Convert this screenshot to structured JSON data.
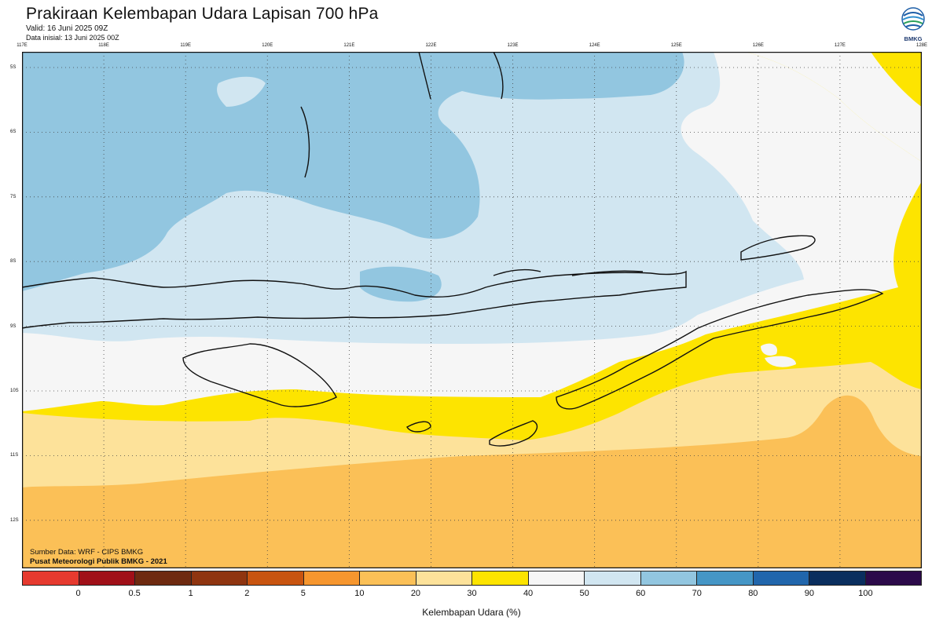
{
  "header": {
    "title": "Prakiraan Kelembapan Udara Lapisan 700 hPa",
    "valid": "Valid: 16 Juni 2025 09Z",
    "init": "Data inisial: 13 Juni 2025 00Z",
    "logo_text": "BMKG"
  },
  "map": {
    "lon_labels": [
      "117E",
      "118E",
      "119E",
      "120E",
      "121E",
      "122E",
      "123E",
      "124E",
      "125E",
      "126E",
      "127E",
      "128E"
    ],
    "lat_labels": [
      "5S",
      "6S",
      "7S",
      "8S",
      "9S",
      "10S",
      "11S",
      "12S"
    ],
    "extent": {
      "lon": [
        117,
        128
      ],
      "lat": [
        -5,
        -13
      ]
    },
    "gridlines": true
  },
  "credits": {
    "line1": "Sumber Data: WRF - CIPS BMKG",
    "line2": "Pusat Meteorologi Publik BMKG - 2021"
  },
  "colorbar": {
    "colors": [
      "#e63a2f",
      "#a01018",
      "#6e2a10",
      "#8f3510",
      "#c85410",
      "#f6962e",
      "#fbc057",
      "#fde29a",
      "#fde400",
      "#f6f6f6",
      "#d1e6f1",
      "#92c6e0",
      "#4596c6",
      "#2166ac",
      "#0a2e5e",
      "#2c0a4a"
    ],
    "ticks": [
      "0",
      "0.5",
      "1",
      "2",
      "5",
      "10",
      "20",
      "30",
      "40",
      "50",
      "60",
      "70",
      "80",
      "90",
      "100"
    ],
    "title": "Kelembapan Udara (%)"
  }
}
